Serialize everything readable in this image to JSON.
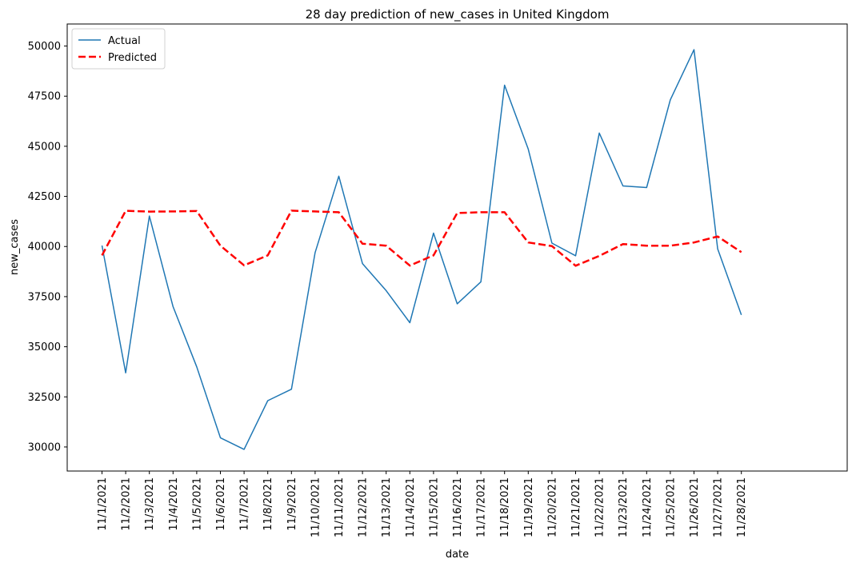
{
  "chart_data": {
    "type": "line",
    "title": "28 day prediction of new_cases in United Kingdom",
    "xlabel": "date",
    "ylabel": "new_cases",
    "ylim": [
      28800,
      51100
    ],
    "yticks": [
      30000,
      32500,
      35000,
      37500,
      40000,
      42500,
      45000,
      47500,
      50000
    ],
    "x": [
      "11/1/2021",
      "11/2/2021",
      "11/3/2021",
      "11/4/2021",
      "11/5/2021",
      "11/6/2021",
      "11/7/2021",
      "11/8/2021",
      "11/9/2021",
      "11/10/2021",
      "11/11/2021",
      "11/12/2021",
      "11/13/2021",
      "11/14/2021",
      "11/15/2021",
      "11/16/2021",
      "11/17/2021",
      "11/18/2021",
      "11/19/2021",
      "11/20/2021",
      "11/21/2021",
      "11/22/2021",
      "11/23/2021",
      "11/24/2021",
      "11/25/2021",
      "11/26/2021",
      "11/27/2021",
      "11/28/2021"
    ],
    "series": [
      {
        "name": "Actual",
        "color": "#1f77b4",
        "style": "solid",
        "values": [
          40050,
          33700,
          41520,
          37000,
          34000,
          30460,
          29880,
          32310,
          32880,
          39700,
          43510,
          39150,
          37800,
          36200,
          40670,
          37140,
          38240,
          48050,
          44860,
          40170,
          39540,
          45660,
          43020,
          42940,
          47320,
          49820,
          39880,
          36590
        ]
      },
      {
        "name": "Predicted",
        "color": "#ff0000",
        "style": "dashed",
        "values": [
          39560,
          41780,
          41740,
          41750,
          41770,
          40040,
          39060,
          39560,
          41790,
          41750,
          41710,
          40140,
          40040,
          39050,
          39560,
          41670,
          41710,
          41710,
          40200,
          40020,
          39040,
          39530,
          40120,
          40040,
          40040,
          40200,
          40500,
          39720
        ]
      }
    ],
    "legend": "top-left",
    "grid": false
  }
}
